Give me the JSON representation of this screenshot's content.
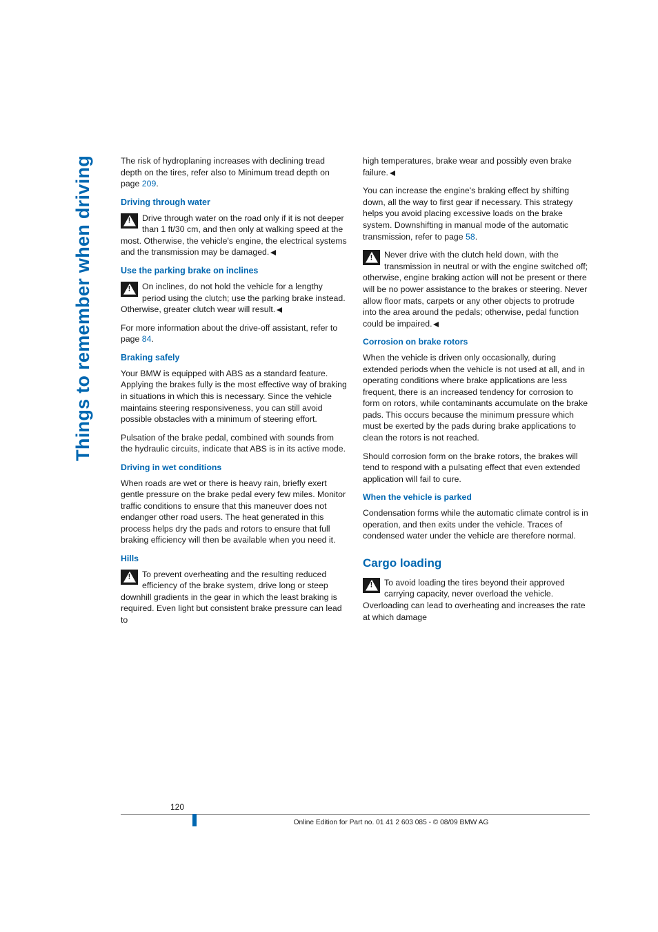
{
  "sideTab": "Things to remember when driving",
  "colLeft": {
    "p1a": "The risk of hydroplaning increases with declining tread depth on the tires, refer also to Minimum tread depth on page ",
    "p1ref": "209",
    "p1b": ".",
    "h_water": "Driving through water",
    "p_water": "Drive through water on the road only if it is not deeper than 1 ft/30 cm, and then only at walking speed at the most. Otherwise, the vehicle's engine, the electrical systems and the transmission may be damaged.",
    "h_park": "Use the parking brake on inclines",
    "p_park": "On inclines, do not hold the vehicle for a lengthy period using the clutch; use the parking brake instead. Otherwise, greater clutch wear will result.",
    "p_info_a": "For more information about the drive-off assistant, refer to page ",
    "p_info_ref": "84",
    "p_info_b": ".",
    "h_brake": "Braking safely",
    "p_brake1": "Your BMW is equipped with ABS as a standard feature. Applying the brakes fully is the most effective way of braking in situations in which this is necessary. Since the vehicle maintains steering responsiveness, you can still avoid possible obstacles with a minimum of steering effort.",
    "p_brake2": "Pulsation of the brake pedal, combined with sounds from the hydraulic circuits, indicate that ABS is in its active mode.",
    "h_wet": "Driving in wet conditions",
    "p_wet": "When roads are wet or there is heavy rain, briefly exert gentle pressure on the brake pedal every few miles. Monitor traffic conditions to ensure that this maneuver does not endanger other road users. The heat generated in this process helps dry the pads and rotors to ensure that full braking efficiency will then be available when you need it.",
    "h_hills": "Hills",
    "p_hills": "To prevent overheating and the resulting reduced efficiency of the brake system, drive long or steep downhill gradients in the gear in which the least braking is required. Even light but consistent brake pressure can lead to"
  },
  "colRight": {
    "p_cont": "high temperatures, brake wear and possibly even brake failure.",
    "p_shift_a": "You can increase the engine's braking effect by shifting down, all the way to first gear if necessary. This strategy helps you avoid placing excessive loads on the brake system. Downshifting in manual mode of the automatic transmission, refer to page ",
    "p_shift_ref": "58",
    "p_shift_b": ".",
    "p_clutch": "Never drive with the clutch held down, with the transmission in neutral or with the engine switched off; otherwise, engine braking action will not be present or there will be no power assistance to the brakes or steering. Never allow floor mats, carpets or any other objects to protrude into the area around the pedals; otherwise, pedal function could be impaired.",
    "h_corr": "Corrosion on brake rotors",
    "p_corr1": "When the vehicle is driven only occasionally, during extended periods when the vehicle is not used at all, and in operating conditions where brake applications are less frequent, there is an increased tendency for corrosion to form on rotors, while contaminants accumulate on the brake pads. This occurs because the minimum pressure which must be exerted by the pads during brake applications to clean the rotors is not reached.",
    "p_corr2": "Should corrosion form on the brake rotors, the brakes will tend to respond with a pulsating effect that even extended application will fail to cure.",
    "h_parked": "When the vehicle is parked",
    "p_parked": "Condensation forms while the automatic climate control is in operation, and then exits under the vehicle. Traces of condensed water under the vehicle are therefore normal.",
    "h_cargo": "Cargo loading",
    "p_cargo": "To avoid loading the tires beyond their approved carrying capacity, never overload the vehicle. Overloading can lead to overheating and increases the rate at which damage"
  },
  "footer": {
    "pageNum": "120",
    "line": "Online Edition for Part no. 01 41 2 603 085 - © 08/09 BMW AG"
  }
}
